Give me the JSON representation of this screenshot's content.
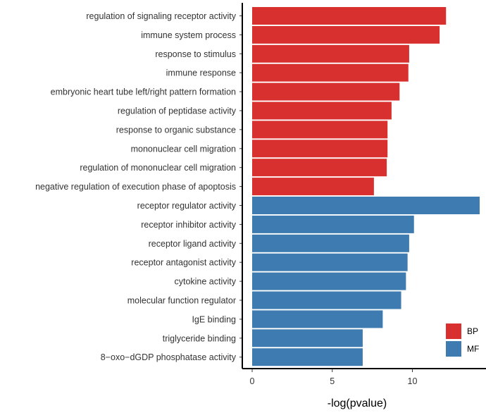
{
  "chart_data": {
    "type": "bar",
    "orientation": "horizontal",
    "xlabel": "-log(pvalue)",
    "ylabel": "",
    "xlim": [
      0,
      14.2
    ],
    "x_ticks": [
      0,
      5,
      10
    ],
    "grid": false,
    "legend_position": "bottom-right",
    "groups": [
      {
        "name": "BP",
        "color": "#D7302F"
      },
      {
        "name": "MF",
        "color": "#3D7BB0"
      }
    ],
    "bars": [
      {
        "label": "regulation of signaling receptor activity",
        "value": 12.1,
        "group": "BP"
      },
      {
        "label": "immune system process",
        "value": 11.7,
        "group": "BP"
      },
      {
        "label": "response to stimulus",
        "value": 9.8,
        "group": "BP"
      },
      {
        "label": "immune response",
        "value": 9.75,
        "group": "BP"
      },
      {
        "label": "embryonic heart tube left/right pattern formation",
        "value": 9.2,
        "group": "BP"
      },
      {
        "label": "regulation of peptidase activity",
        "value": 8.7,
        "group": "BP"
      },
      {
        "label": "response to organic substance",
        "value": 8.45,
        "group": "BP"
      },
      {
        "label": "mononuclear cell migration",
        "value": 8.45,
        "group": "BP"
      },
      {
        "label": "regulation of mononuclear cell migration",
        "value": 8.4,
        "group": "BP"
      },
      {
        "label": "negative regulation of execution phase of apoptosis",
        "value": 7.6,
        "group": "BP"
      },
      {
        "label": "receptor regulator activity",
        "value": 14.2,
        "group": "MF"
      },
      {
        "label": "receptor inhibitor activity",
        "value": 10.1,
        "group": "MF"
      },
      {
        "label": "receptor ligand activity",
        "value": 9.8,
        "group": "MF"
      },
      {
        "label": "receptor antagonist activity",
        "value": 9.7,
        "group": "MF"
      },
      {
        "label": "cytokine activity",
        "value": 9.6,
        "group": "MF"
      },
      {
        "label": "molecular function regulator",
        "value": 9.3,
        "group": "MF"
      },
      {
        "label": "IgE binding",
        "value": 8.15,
        "group": "MF"
      },
      {
        "label": "triglyceride binding",
        "value": 6.9,
        "group": "MF"
      },
      {
        "label": "8−oxo−dGDP phosphatase activity",
        "value": 6.9,
        "group": "MF"
      }
    ]
  }
}
